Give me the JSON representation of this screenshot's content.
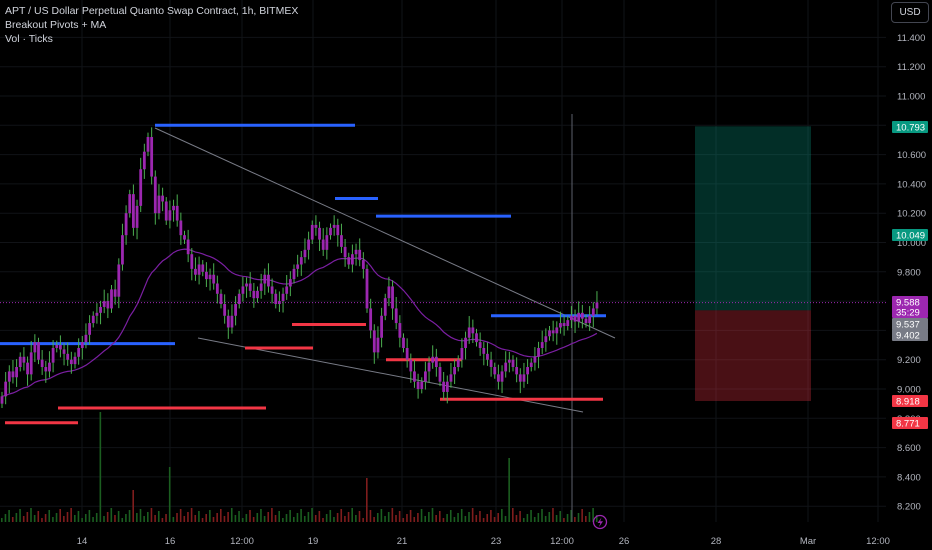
{
  "legend": {
    "line1": "APT / US Dollar Perpetual Quanto Swap Contract, 1h, BITMEX",
    "line2": "Breakout Pivots + MA",
    "line3": "Vol · Ticks"
  },
  "currency_button": "USD",
  "chart_data": {
    "type": "candlestick",
    "timeframe": "1h",
    "y_axis": {
      "ticks": [
        "11.400",
        "11.200",
        "11.000",
        "10.800",
        "10.600",
        "10.400",
        "10.200",
        "10.000",
        "9.800",
        "9.600",
        "9.400",
        "9.200",
        "9.000",
        "8.800",
        "8.600",
        "8.400",
        "8.200"
      ],
      "ylim": [
        8.12,
        11.52
      ]
    },
    "x_axis": {
      "ticks": [
        "14",
        "16",
        "12:00",
        "19",
        "21",
        "23",
        "12:00",
        "26",
        "28",
        "Mar",
        "12:00"
      ]
    },
    "close_series": [
      8.95,
      9.05,
      9.12,
      9.08,
      9.15,
      9.22,
      9.18,
      9.1,
      9.25,
      9.32,
      9.2,
      9.15,
      9.12,
      9.18,
      9.28,
      9.3,
      9.27,
      9.24,
      9.2,
      9.17,
      9.22,
      9.28,
      9.32,
      9.37,
      9.45,
      9.5,
      9.52,
      9.56,
      9.6,
      9.55,
      9.68,
      9.63,
      9.85,
      10.05,
      10.2,
      10.33,
      10.1,
      10.25,
      10.5,
      10.62,
      10.72,
      10.45,
      10.2,
      10.32,
      10.28,
      10.15,
      10.22,
      10.25,
      10.15,
      10.05,
      10.02,
      9.92,
      9.82,
      9.78,
      9.85,
      9.8,
      9.75,
      9.78,
      9.72,
      9.65,
      9.58,
      9.5,
      9.42,
      9.5,
      9.58,
      9.65,
      9.7,
      9.72,
      9.67,
      9.62,
      9.67,
      9.72,
      9.78,
      9.7,
      9.65,
      9.58,
      9.6,
      9.65,
      9.7,
      9.75,
      9.82,
      9.85,
      9.9,
      9.95,
      10.02,
      10.12,
      10.1,
      10.02,
      9.95,
      10.05,
      10.1,
      10.12,
      10.05,
      9.97,
      9.9,
      9.85,
      9.92,
      9.95,
      9.88,
      9.82,
      9.55,
      9.4,
      9.25,
      9.35,
      9.5,
      9.62,
      9.7,
      9.55,
      9.45,
      9.35,
      9.28,
      9.2,
      9.12,
      9.05,
      9.0,
      9.05,
      9.12,
      9.18,
      9.22,
      9.15,
      9.05,
      8.98,
      9.05,
      9.1,
      9.15,
      9.2,
      9.28,
      9.35,
      9.42,
      9.38,
      9.32,
      9.28,
      9.24,
      9.2,
      9.15,
      9.1,
      9.05,
      9.12,
      9.18,
      9.2,
      9.15,
      9.1,
      9.05,
      9.1,
      9.15,
      9.18,
      9.22,
      9.28,
      9.32,
      9.36,
      9.4,
      9.38,
      9.42,
      9.45,
      9.43,
      9.47,
      9.5,
      9.46,
      9.52,
      9.48,
      9.45,
      9.5,
      9.55,
      9.59
    ],
    "pivot_highs": [
      9.31,
      10.8,
      10.3,
      10.18,
      9.5
    ],
    "pivot_lows": [
      8.77,
      8.87,
      9.28,
      9.44,
      9.2,
      8.93
    ],
    "position": {
      "take_profit": "10.793",
      "entry": "9.537",
      "stop": "8.918"
    },
    "volume_ticks": "Vol · Ticks",
    "price_labels": [
      {
        "text": "10.793",
        "color": "#089981"
      },
      {
        "text": "10.049",
        "color": "#089981"
      },
      {
        "text": "9.588",
        "color": "#9c27b0"
      },
      {
        "text": "35:29",
        "color": "#9c27b0"
      },
      {
        "text": "9.537",
        "color": "#787b86"
      },
      {
        "text": "9.402",
        "color": "#787b86"
      },
      {
        "text": "8.918",
        "color": "#f23645"
      },
      {
        "text": "8.771",
        "color": "#f23645"
      }
    ],
    "colors": {
      "candle": "#9c27b0",
      "wick": "#4caf50",
      "pivot_high": "#2962ff",
      "pivot_low": "#f23645",
      "ma": "#7b1fa2"
    }
  }
}
